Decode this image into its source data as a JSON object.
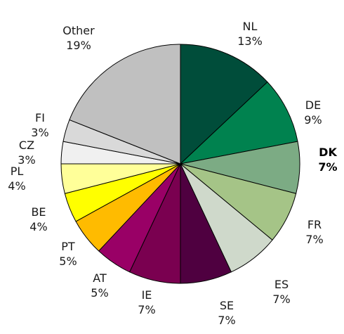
{
  "chart_data": {
    "type": "pie",
    "slices": [
      {
        "label": "NL",
        "value_label": "13%",
        "value": 13,
        "color": "#004d3a",
        "bold": false
      },
      {
        "label": "DE",
        "value_label": "9%",
        "value": 9,
        "color": "#00824f",
        "bold": false
      },
      {
        "label": "DK",
        "value_label": "7%",
        "value": 7,
        "color": "#7cab84",
        "bold": true
      },
      {
        "label": "FR",
        "value_label": "7%",
        "value": 7,
        "color": "#a5c487",
        "bold": false
      },
      {
        "label": "ES",
        "value_label": "7%",
        "value": 7,
        "color": "#cfd9cb",
        "bold": false
      },
      {
        "label": "SE",
        "value_label": "7%",
        "value": 7,
        "color": "#4f0040",
        "bold": false
      },
      {
        "label": "IE",
        "value_label": "7%",
        "value": 7,
        "color": "#7a0050",
        "bold": false
      },
      {
        "label": "AT",
        "value_label": "5%",
        "value": 5,
        "color": "#990066",
        "bold": false
      },
      {
        "label": "PT",
        "value_label": "5%",
        "value": 5,
        "color": "#ffbb00",
        "bold": false
      },
      {
        "label": "BE",
        "value_label": "4%",
        "value": 4,
        "color": "#ffff00",
        "bold": false
      },
      {
        "label": "PL",
        "value_label": "4%",
        "value": 4,
        "color": "#ffff99",
        "bold": false
      },
      {
        "label": "CZ",
        "value_label": "3%",
        "value": 3,
        "color": "#f0f0f0",
        "bold": false
      },
      {
        "label": "FI",
        "value_label": "3%",
        "value": 3,
        "color": "#d9d9d9",
        "bold": false
      },
      {
        "label": "Other",
        "value_label": "19%",
        "value": 19,
        "color": "#c0c0c0",
        "bold": false
      }
    ]
  }
}
